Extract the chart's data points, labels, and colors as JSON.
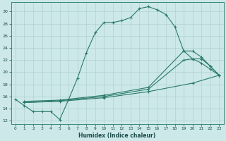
{
  "bg_color": "#cce8e8",
  "grid_color": "#aacccc",
  "line_color": "#2a7a6a",
  "xlabel": "Humidex (Indice chaleur)",
  "ylabel_ticks": [
    12,
    14,
    16,
    18,
    20,
    22,
    24,
    26,
    28,
    30
  ],
  "xtick_labels": [
    "0",
    "1",
    "2",
    "3",
    "4",
    "5",
    "6",
    "7",
    "8",
    "9",
    "10",
    "11",
    "12",
    "13",
    "14",
    "15",
    "16",
    "17",
    "18",
    "19",
    "20",
    "21",
    "22",
    "23"
  ],
  "xlim": [
    -0.5,
    23.5
  ],
  "ylim": [
    11.5,
    31.5
  ],
  "line1_x": [
    0,
    1,
    2,
    3,
    4,
    5,
    6,
    7,
    8,
    9,
    10,
    11,
    12,
    13,
    14,
    15,
    16,
    17,
    18,
    19,
    20,
    21,
    22,
    23
  ],
  "line1_y": [
    15.5,
    14.5,
    13.5,
    13.5,
    13.5,
    12.2,
    15.5,
    19.0,
    23.2,
    26.5,
    28.2,
    28.2,
    28.5,
    29.0,
    30.5,
    30.8,
    30.3,
    29.5,
    27.5,
    23.5,
    22.2,
    21.5,
    20.5,
    19.5
  ],
  "line2_x": [
    1,
    5,
    10,
    15,
    20,
    23
  ],
  "line2_y": [
    15.0,
    15.2,
    15.8,
    16.8,
    18.2,
    19.5
  ],
  "line3_x": [
    1,
    5,
    10,
    15,
    19,
    20,
    21,
    22,
    23
  ],
  "line3_y": [
    15.0,
    15.3,
    16.0,
    17.2,
    22.0,
    22.2,
    22.2,
    21.0,
    19.5
  ],
  "line4_x": [
    1,
    5,
    10,
    15,
    19,
    20,
    21,
    22,
    23
  ],
  "line4_y": [
    15.2,
    15.4,
    16.2,
    17.5,
    23.5,
    23.5,
    22.5,
    21.0,
    19.5
  ]
}
